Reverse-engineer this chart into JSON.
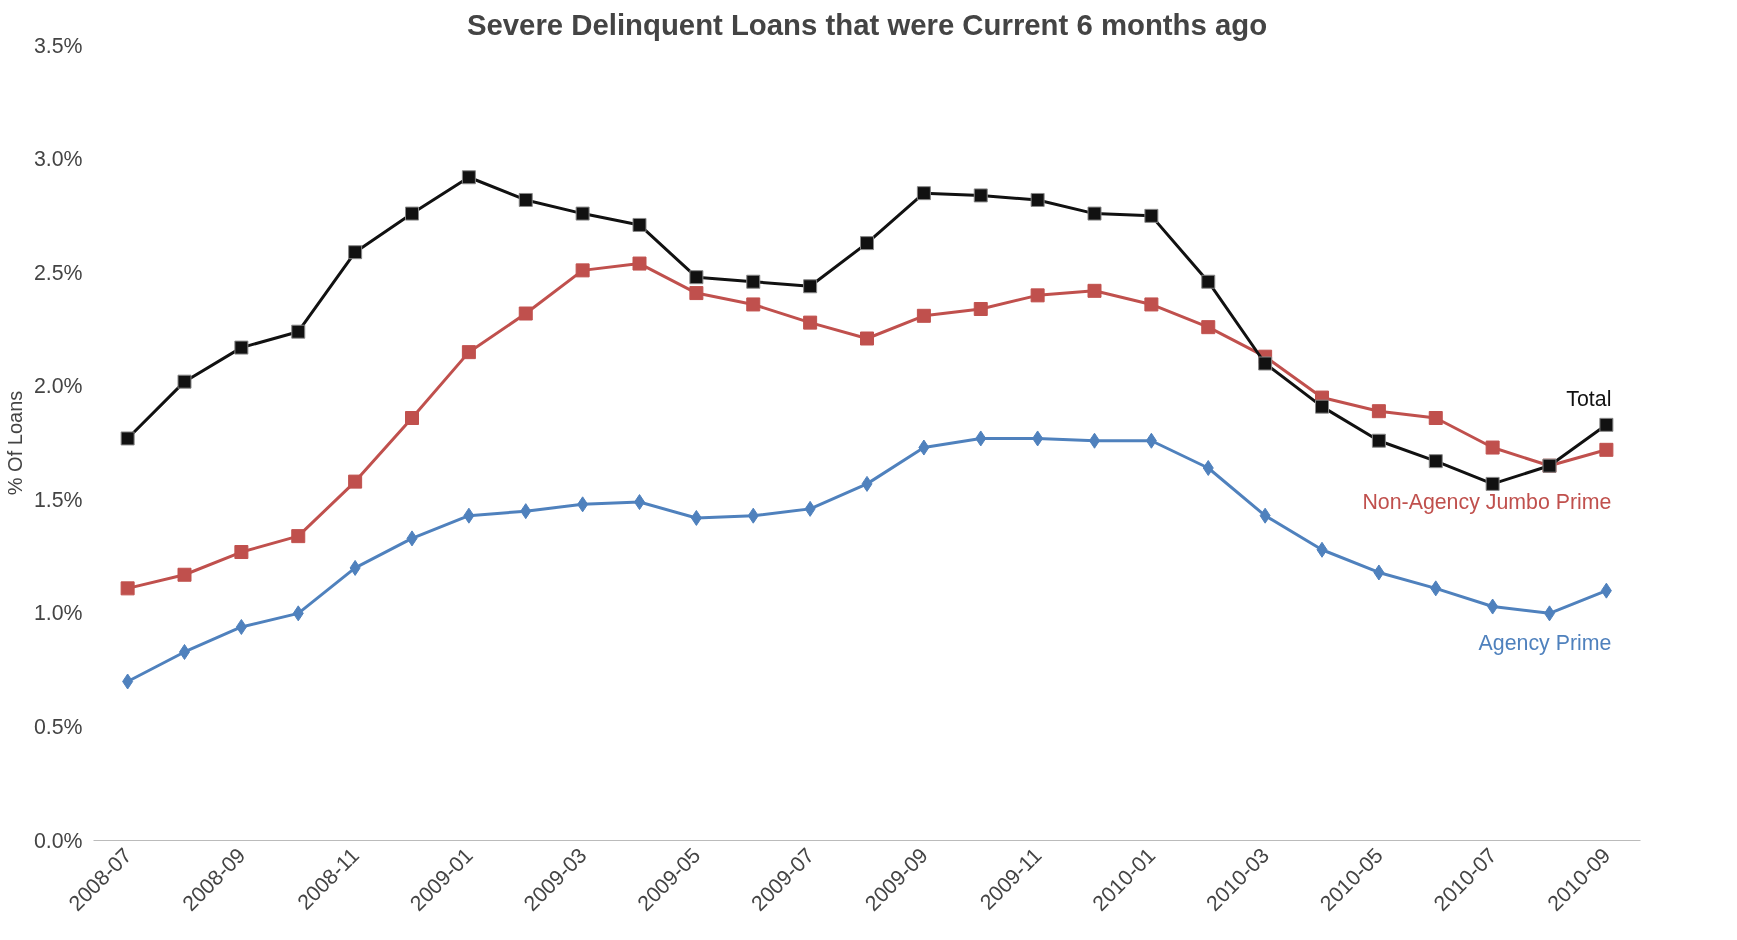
{
  "chart_data": {
    "type": "line",
    "title": "Severe Delinquent Loans that were Current 6 months ago",
    "ylabel": "% Of Loans",
    "categories": [
      "2008-07",
      null,
      "2008-09",
      null,
      "2008-11",
      null,
      "2009-01",
      null,
      "2009-03",
      null,
      "2009-05",
      null,
      "2009-07",
      null,
      "2009-09",
      null,
      "2009-11",
      null,
      "2010-01",
      null,
      "2010-03",
      null,
      "2010-05",
      null,
      "2010-07",
      null,
      "2010-09"
    ],
    "series": [
      {
        "name": "Total",
        "color": "#111111",
        "marker": "square",
        "values": [
          1.77,
          2.02,
          2.17,
          2.24,
          2.59,
          2.76,
          2.92,
          2.82,
          2.76,
          2.71,
          2.48,
          2.46,
          2.44,
          2.63,
          2.85,
          2.84,
          2.82,
          2.76,
          2.75,
          2.46,
          2.1,
          1.91,
          1.76,
          1.67,
          1.57,
          1.65,
          1.83
        ]
      },
      {
        "name": "Non-Agency Jumbo Prime",
        "color": "#c0504d",
        "marker": "square",
        "values": [
          1.11,
          1.17,
          1.27,
          1.34,
          1.58,
          1.86,
          2.15,
          2.32,
          2.51,
          2.54,
          2.41,
          2.36,
          2.28,
          2.21,
          2.31,
          2.34,
          2.4,
          2.42,
          2.36,
          2.26,
          2.13,
          1.95,
          1.89,
          1.86,
          1.73,
          1.65,
          1.72
        ]
      },
      {
        "name": "Agency Prime",
        "color": "#4f81bd",
        "marker": "diamond",
        "values": [
          0.7,
          0.83,
          0.94,
          1.0,
          1.2,
          1.33,
          1.43,
          1.45,
          1.48,
          1.49,
          1.42,
          1.43,
          1.46,
          1.57,
          1.73,
          1.77,
          1.77,
          1.76,
          1.76,
          1.64,
          1.43,
          1.28,
          1.18,
          1.11,
          1.03,
          1.0,
          1.1
        ]
      }
    ],
    "ylim": [
      0,
      3.5
    ],
    "yticks": [
      {
        "value": 0,
        "label": "0.0%"
      },
      {
        "value": 0.5,
        "label": "0.5%"
      },
      {
        "value": 1.0,
        "label": "1.0%"
      },
      {
        "value": 1.5,
        "label": "1.5%"
      },
      {
        "value": 2.0,
        "label": "2.0%"
      },
      {
        "value": 2.5,
        "label": "2.5%"
      },
      {
        "value": 3.0,
        "label": "3.0%"
      },
      {
        "value": 3.5,
        "label": "3.5%"
      }
    ],
    "grid": false,
    "legend": false
  }
}
